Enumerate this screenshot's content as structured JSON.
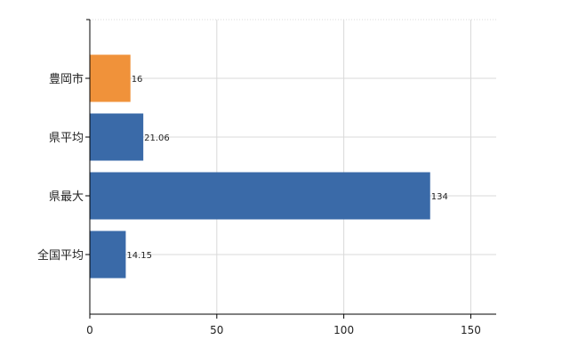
{
  "chart_data": {
    "type": "bar",
    "orientation": "horizontal",
    "categories": [
      "豊岡市",
      "県平均",
      "県最大",
      "全国平均"
    ],
    "values": [
      16,
      21.06,
      134,
      14.15
    ],
    "value_labels": [
      "16",
      "21.06",
      "134",
      "14.15"
    ],
    "bar_colors": [
      "#f0923a",
      "#3a6aa8",
      "#3a6aa8",
      "#3a6aa8"
    ],
    "xlim": [
      0,
      160
    ],
    "xticks": [
      0,
      50,
      100,
      150
    ],
    "xtick_labels": [
      "0",
      "50",
      "100",
      "150"
    ],
    "grid": true,
    "grid_color": "#d9d9d9",
    "legend": "none"
  }
}
